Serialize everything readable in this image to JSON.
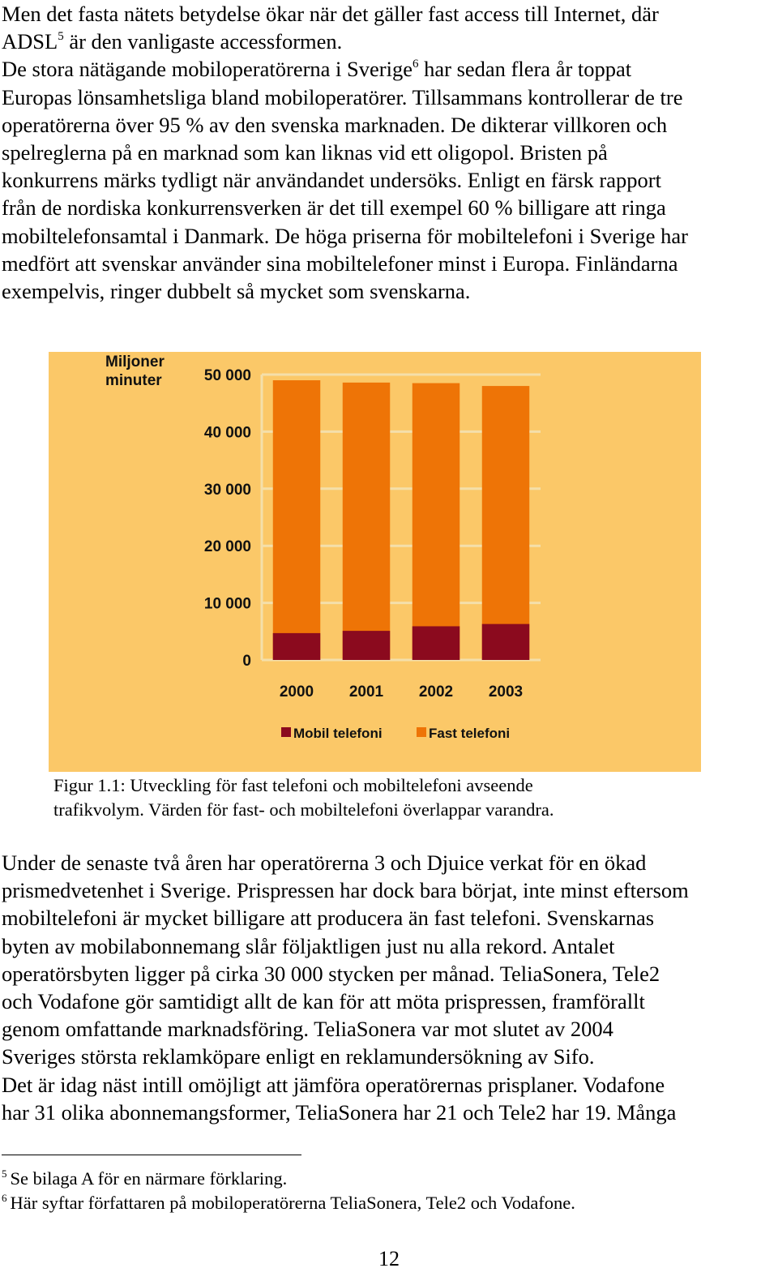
{
  "paragraph1": {
    "line1": "Men det fasta nätets betydelse ökar när det gäller fast access till Internet, där",
    "line2_a": "ADSL",
    "line2_sup": "5",
    "line2_b": " är den vanligaste accessformen.",
    "line3_a": "De stora nätägande mobiloperatörerna i Sverige",
    "line3_sup": "6",
    "line3_b": " har sedan flera år toppat",
    "line4": "Europas lönsamhetsliga bland mobiloperatörer. Tillsammans kontrollerar de tre",
    "line5": "operatörerna över 95 % av den svenska marknaden. De dikterar villkoren och",
    "line6": "spelreglerna på en marknad som kan liknas vid ett oligopol. Bristen på",
    "line7": "konkurrens märks tydligt när användandet undersöks. Enligt en färsk rapport",
    "line8": "från de nordiska konkurrensverken är det till exempel 60 % billigare att ringa",
    "line9": "mobiltelefonsamtal i Danmark. De höga priserna för mobiltelefoni i Sverige har",
    "line10": "medfört att svenskar använder sina mobiltelefoner minst i Europa. Finländarna",
    "line11": "exempelvis, ringer dubbelt så mycket som svenskarna."
  },
  "chart_data": {
    "type": "bar",
    "ylabel_line1": "Miljoner",
    "ylabel_line2": "minuter",
    "categories": [
      "2000",
      "2001",
      "2002",
      "2003"
    ],
    "yticks": [
      "0",
      "10 000",
      "20 000",
      "30 000",
      "40 000",
      "50 000"
    ],
    "ylim": [
      0,
      50000
    ],
    "series": [
      {
        "name": "Mobil telefoni",
        "values": [
          4700,
          5100,
          5900,
          6300
        ],
        "color": "#8b0a1e"
      },
      {
        "name": "Fast telefoni",
        "values": [
          44300,
          43500,
          42600,
          41700
        ],
        "color": "#ee7406"
      }
    ],
    "overlap": true,
    "grid": true,
    "legend_position": "bottom",
    "background_color": "#fbc868"
  },
  "caption": {
    "line1": "Figur 1.1: Utveckling för fast telefoni och mobiltelefoni avseende",
    "line2": "trafikvolym. Värden för fast- och mobiltelefoni överlappar varandra."
  },
  "paragraph2": {
    "line1": "Under de senaste två åren har operatörerna 3 och Djuice verkat för en ökad",
    "line2": "prismedvetenhet i Sverige. Prispressen har dock bara börjat, inte minst eftersom",
    "line3": "mobiltelefoni är mycket billigare att producera än fast telefoni. Svenskarnas",
    "line4": "byten av mobilabonnemang slår följaktligen just nu alla rekord. Antalet",
    "line5": "operatörsbyten ligger på cirka 30 000 stycken per månad. TeliaSonera, Tele2",
    "line6": "och Vodafone gör samtidigt allt de kan för att möta prispressen, framförallt",
    "line7": "genom omfattande marknadsföring. TeliaSonera var mot slutet av 2004",
    "line8": "Sveriges största reklamköpare enligt en reklamundersökning av Sifo.",
    "line9": "Det är idag näst intill omöjligt att jämföra operatörernas prisplaner. Vodafone",
    "line10": "har 31 olika abonnemangsformer, TeliaSonera har 21 och Tele2 har 19. Många"
  },
  "footnotes": [
    {
      "number": "5",
      "text": "Se bilaga A för en närmare förklaring."
    },
    {
      "number": "6",
      "text": "Här syftar författaren på mobiloperatörerna TeliaSonera, Tele2 och Vodafone."
    }
  ],
  "page_number": "12"
}
